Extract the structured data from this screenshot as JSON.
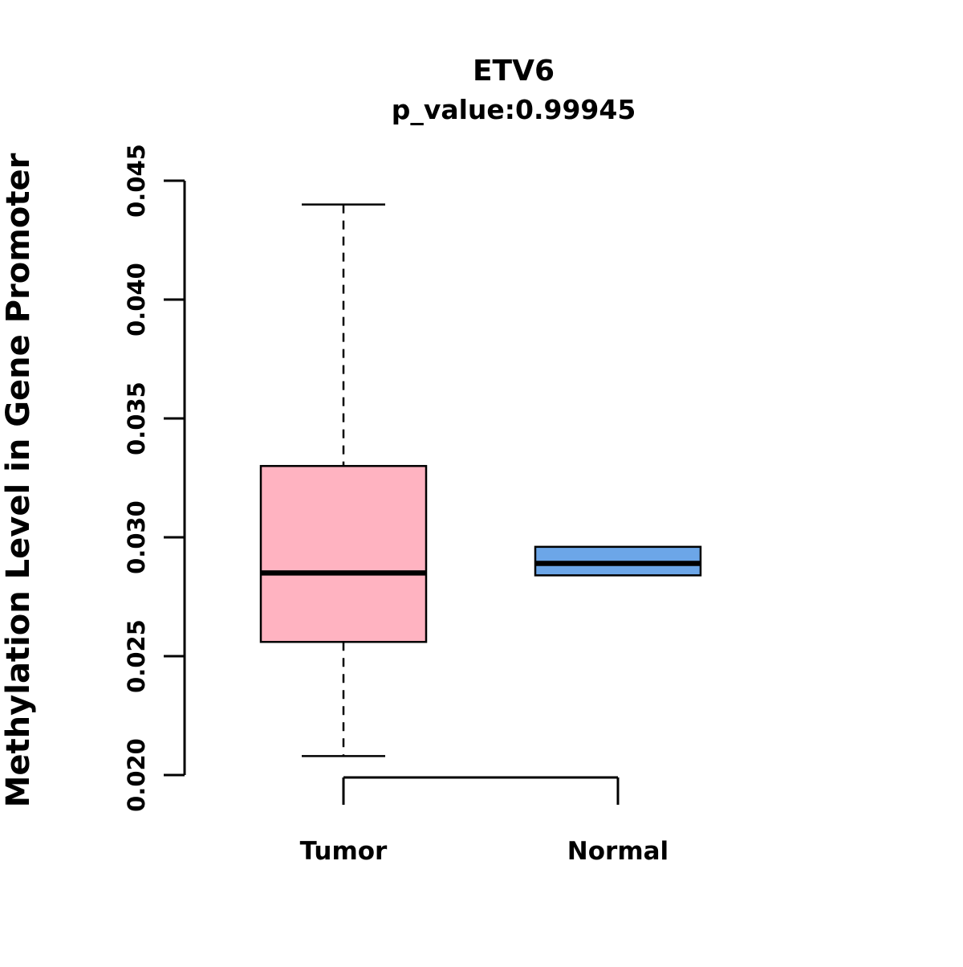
{
  "title": "ETV6",
  "subtitle": "p_value:0.99945",
  "ylabel": "Methylation Level in Gene Promoter",
  "chart_data": {
    "type": "boxplot",
    "title": "ETV6",
    "subtitle": "p_value:0.99945",
    "ylabel": "Methylation Level in Gene Promoter",
    "xlabel": "",
    "ylim": [
      0.02,
      0.045
    ],
    "yticks": [
      "0.020",
      "0.025",
      "0.030",
      "0.035",
      "0.040",
      "0.045"
    ],
    "grid": false,
    "legend": "none",
    "categories": [
      "Tumor",
      "Normal"
    ],
    "series": [
      {
        "name": "Tumor",
        "color": "#FFB3C1",
        "whisker_low": 0.0208,
        "q1": 0.0256,
        "median": 0.0285,
        "q3": 0.033,
        "whisker_high": 0.044
      },
      {
        "name": "Normal",
        "color": "#6CA6E8",
        "whisker_low": 0.0284,
        "q1": 0.0284,
        "median": 0.0289,
        "q3": 0.0296,
        "whisker_high": 0.0296
      }
    ]
  }
}
